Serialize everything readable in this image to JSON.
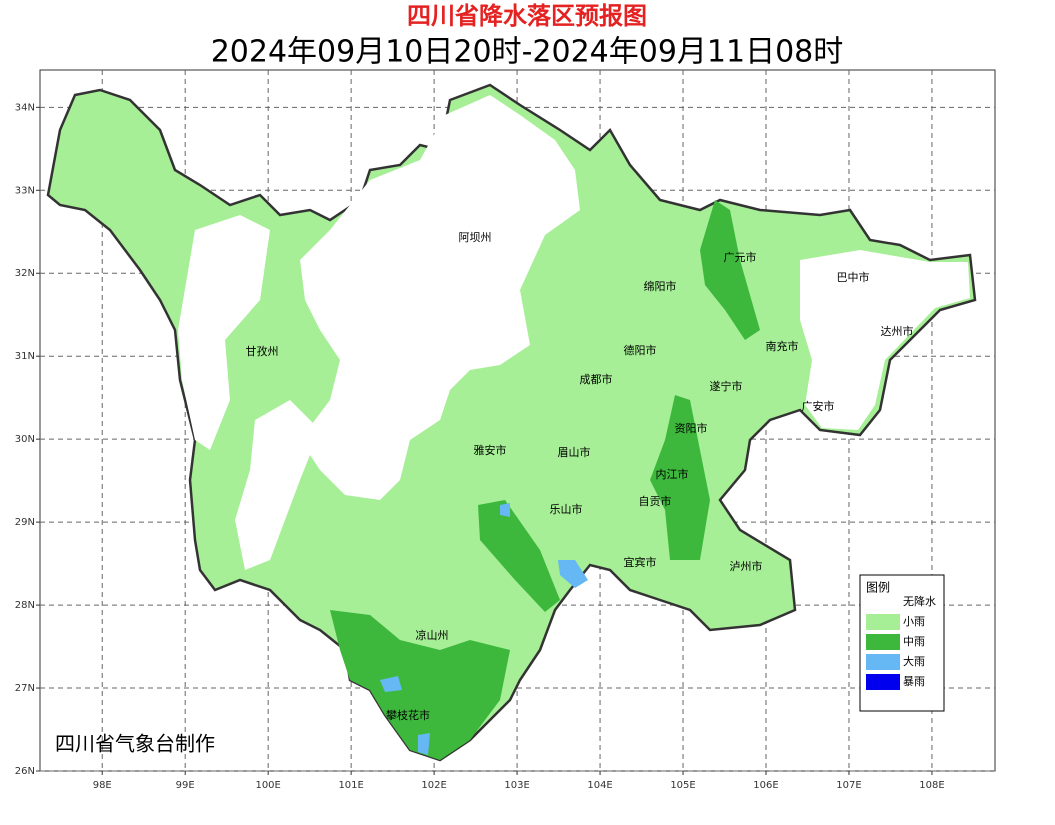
{
  "title": "四川省降水落区预报图",
  "subtitle": "2024年09月10日20时-2024年09月11日08时",
  "credit": "四川省气象台制作",
  "cities": [
    "阿坝州",
    "甘孜州",
    "广元市",
    "巴中市",
    "绵阳市",
    "达州市",
    "德阳市",
    "南充市",
    "成都市",
    "遂宁市",
    "广安市",
    "资阳市",
    "雅安市",
    "眉山市",
    "内江市",
    "自贡市",
    "乐山市",
    "宜宾市",
    "泸州市",
    "凉山州",
    "攀枝花市"
  ],
  "map": {
    "xlim": [
      97.25,
      108.76
    ],
    "ylim": [
      26,
      34.45
    ],
    "xticks": [
      {
        "value": 98,
        "label": "98E"
      },
      {
        "value": 99,
        "label": "99E"
      },
      {
        "value": 100,
        "label": "100E"
      },
      {
        "value": 101,
        "label": "101E"
      },
      {
        "value": 102,
        "label": "102E"
      },
      {
        "value": 103,
        "label": "103E"
      },
      {
        "value": 104,
        "label": "104E"
      },
      {
        "value": 105,
        "label": "105E"
      },
      {
        "value": 106,
        "label": "106E"
      },
      {
        "value": 107,
        "label": "107E"
      },
      {
        "value": 108,
        "label": "108E"
      }
    ],
    "yticks": [
      {
        "value": 26,
        "label": "26N"
      },
      {
        "value": 27,
        "label": "27N"
      },
      {
        "value": 28,
        "label": "28N"
      },
      {
        "value": 29,
        "label": "29N"
      },
      {
        "value": 30,
        "label": "30N"
      },
      {
        "value": 31,
        "label": "31N"
      },
      {
        "value": 32,
        "label": "32N"
      },
      {
        "value": 33,
        "label": "33N"
      },
      {
        "value": 34,
        "label": "34N"
      }
    ],
    "grid": true
  },
  "legend": {
    "title": "图例",
    "items": [
      {
        "label": "无降水",
        "color": "#ffffff"
      },
      {
        "label": "小雨",
        "color": "#a6ef96"
      },
      {
        "label": "中雨",
        "color": "#3db83d"
      },
      {
        "label": "大雨",
        "color": "#66b8f5"
      },
      {
        "label": "暴雨",
        "color": "#0000ee"
      }
    ]
  }
}
